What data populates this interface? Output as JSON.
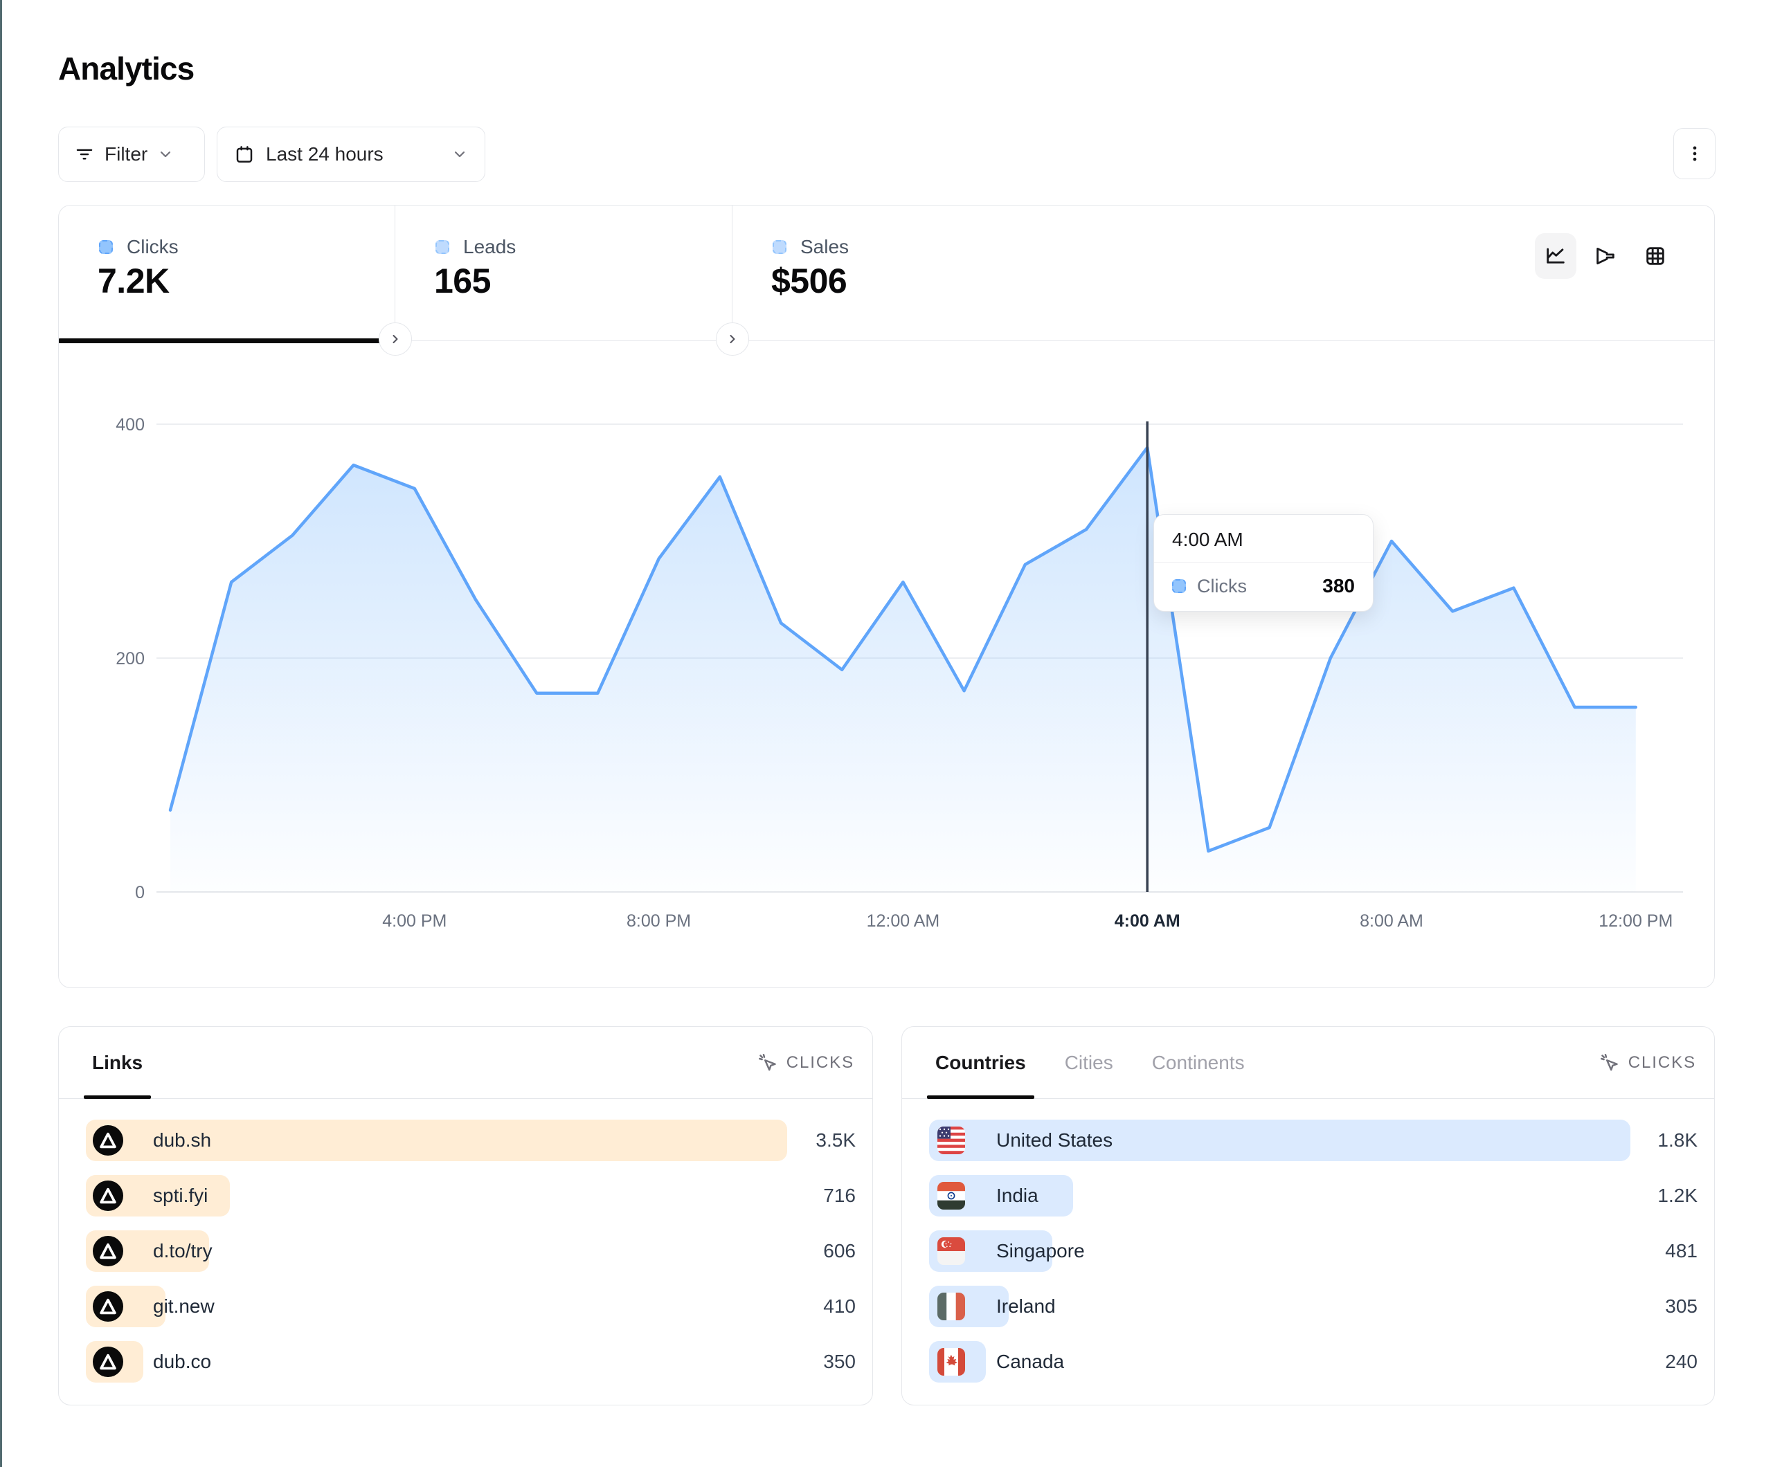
{
  "page": {
    "title": "Analytics"
  },
  "theme": {
    "edge_strip_color": "#526b70",
    "line_color": "#60a5fa",
    "links_bar_color": "#ffedd5",
    "countries_bar_color": "#dbeafe",
    "crosshair_color": "#374151"
  },
  "toolbar": {
    "filter": {
      "label": "Filter"
    },
    "date_range": {
      "label": "Last 24 hours"
    }
  },
  "metric_tabs": [
    {
      "label": "Clicks",
      "value": "7.2K",
      "active": true
    },
    {
      "label": "Leads",
      "value": "165",
      "active": false
    },
    {
      "label": "Sales",
      "value": "$506",
      "active": false
    }
  ],
  "chart_data": {
    "type": "area",
    "series": [
      {
        "name": "Clicks",
        "values": [
          70,
          265,
          305,
          365,
          345,
          250,
          170,
          170,
          285,
          355,
          230,
          190,
          265,
          172,
          280,
          310,
          380,
          35,
          55,
          200,
          300,
          240,
          260,
          158,
          158
        ]
      }
    ],
    "x": [
      "12:00 PM",
      "1:00 PM",
      "2:00 PM",
      "3:00 PM",
      "4:00 PM",
      "5:00 PM",
      "6:00 PM",
      "7:00 PM",
      "8:00 PM",
      "9:00 PM",
      "10:00 PM",
      "11:00 PM",
      "12:00 AM",
      "1:00 AM",
      "2:00 AM",
      "3:00 AM",
      "4:00 AM",
      "5:00 AM",
      "6:00 AM",
      "7:00 AM",
      "8:00 AM",
      "9:00 AM",
      "10:00 AM",
      "11:00 AM",
      "12:00 PM"
    ],
    "x_ticks": [
      {
        "label": "4:00 PM",
        "index": 4,
        "highlight": false
      },
      {
        "label": "8:00 PM",
        "index": 8,
        "highlight": false
      },
      {
        "label": "12:00 AM",
        "index": 12,
        "highlight": false
      },
      {
        "label": "4:00 AM",
        "index": 16,
        "highlight": true
      },
      {
        "label": "8:00 AM",
        "index": 20,
        "highlight": false
      },
      {
        "label": "12:00 PM",
        "index": 24,
        "highlight": false
      }
    ],
    "y_ticks": [
      0,
      200,
      400
    ],
    "ylim": [
      0,
      478
    ],
    "grid": "horizontal",
    "legend": "none",
    "crosshair_index": 16,
    "title": "",
    "xlabel": "",
    "ylabel": ""
  },
  "tooltip": {
    "title": "4:00 AM",
    "series": "Clicks",
    "value": "380"
  },
  "links_panel": {
    "tab_label": "Links",
    "metric_header": "CLICKS",
    "rows": [
      {
        "label": "dub.sh",
        "value": "3.5K",
        "bar_pct": 100
      },
      {
        "label": "spti.fyi",
        "value": "716",
        "bar_pct": 20.5
      },
      {
        "label": "d.to/try",
        "value": "606",
        "bar_pct": 17.6
      },
      {
        "label": "git.new",
        "value": "410",
        "bar_pct": 11.4
      },
      {
        "label": "dub.co",
        "value": "350",
        "bar_pct": 8.2
      }
    ]
  },
  "countries_panel": {
    "tabs": [
      {
        "label": "Countries",
        "active": true
      },
      {
        "label": "Cities",
        "active": false
      },
      {
        "label": "Continents",
        "active": false
      }
    ],
    "metric_header": "CLICKS",
    "rows": [
      {
        "label": "United States",
        "flag": "us-flag",
        "value": "1.8K",
        "bar_pct": 100
      },
      {
        "label": "India",
        "flag": "india-flag",
        "value": "1.2K",
        "bar_pct": 20.5
      },
      {
        "label": "Singapore",
        "flag": "singapore-flag",
        "value": "481",
        "bar_pct": 17.6
      },
      {
        "label": "Ireland",
        "flag": "ireland-flag",
        "value": "305",
        "bar_pct": 11.4
      },
      {
        "label": "Canada",
        "flag": "canada-flag",
        "value": "240",
        "bar_pct": 8.1
      }
    ]
  }
}
